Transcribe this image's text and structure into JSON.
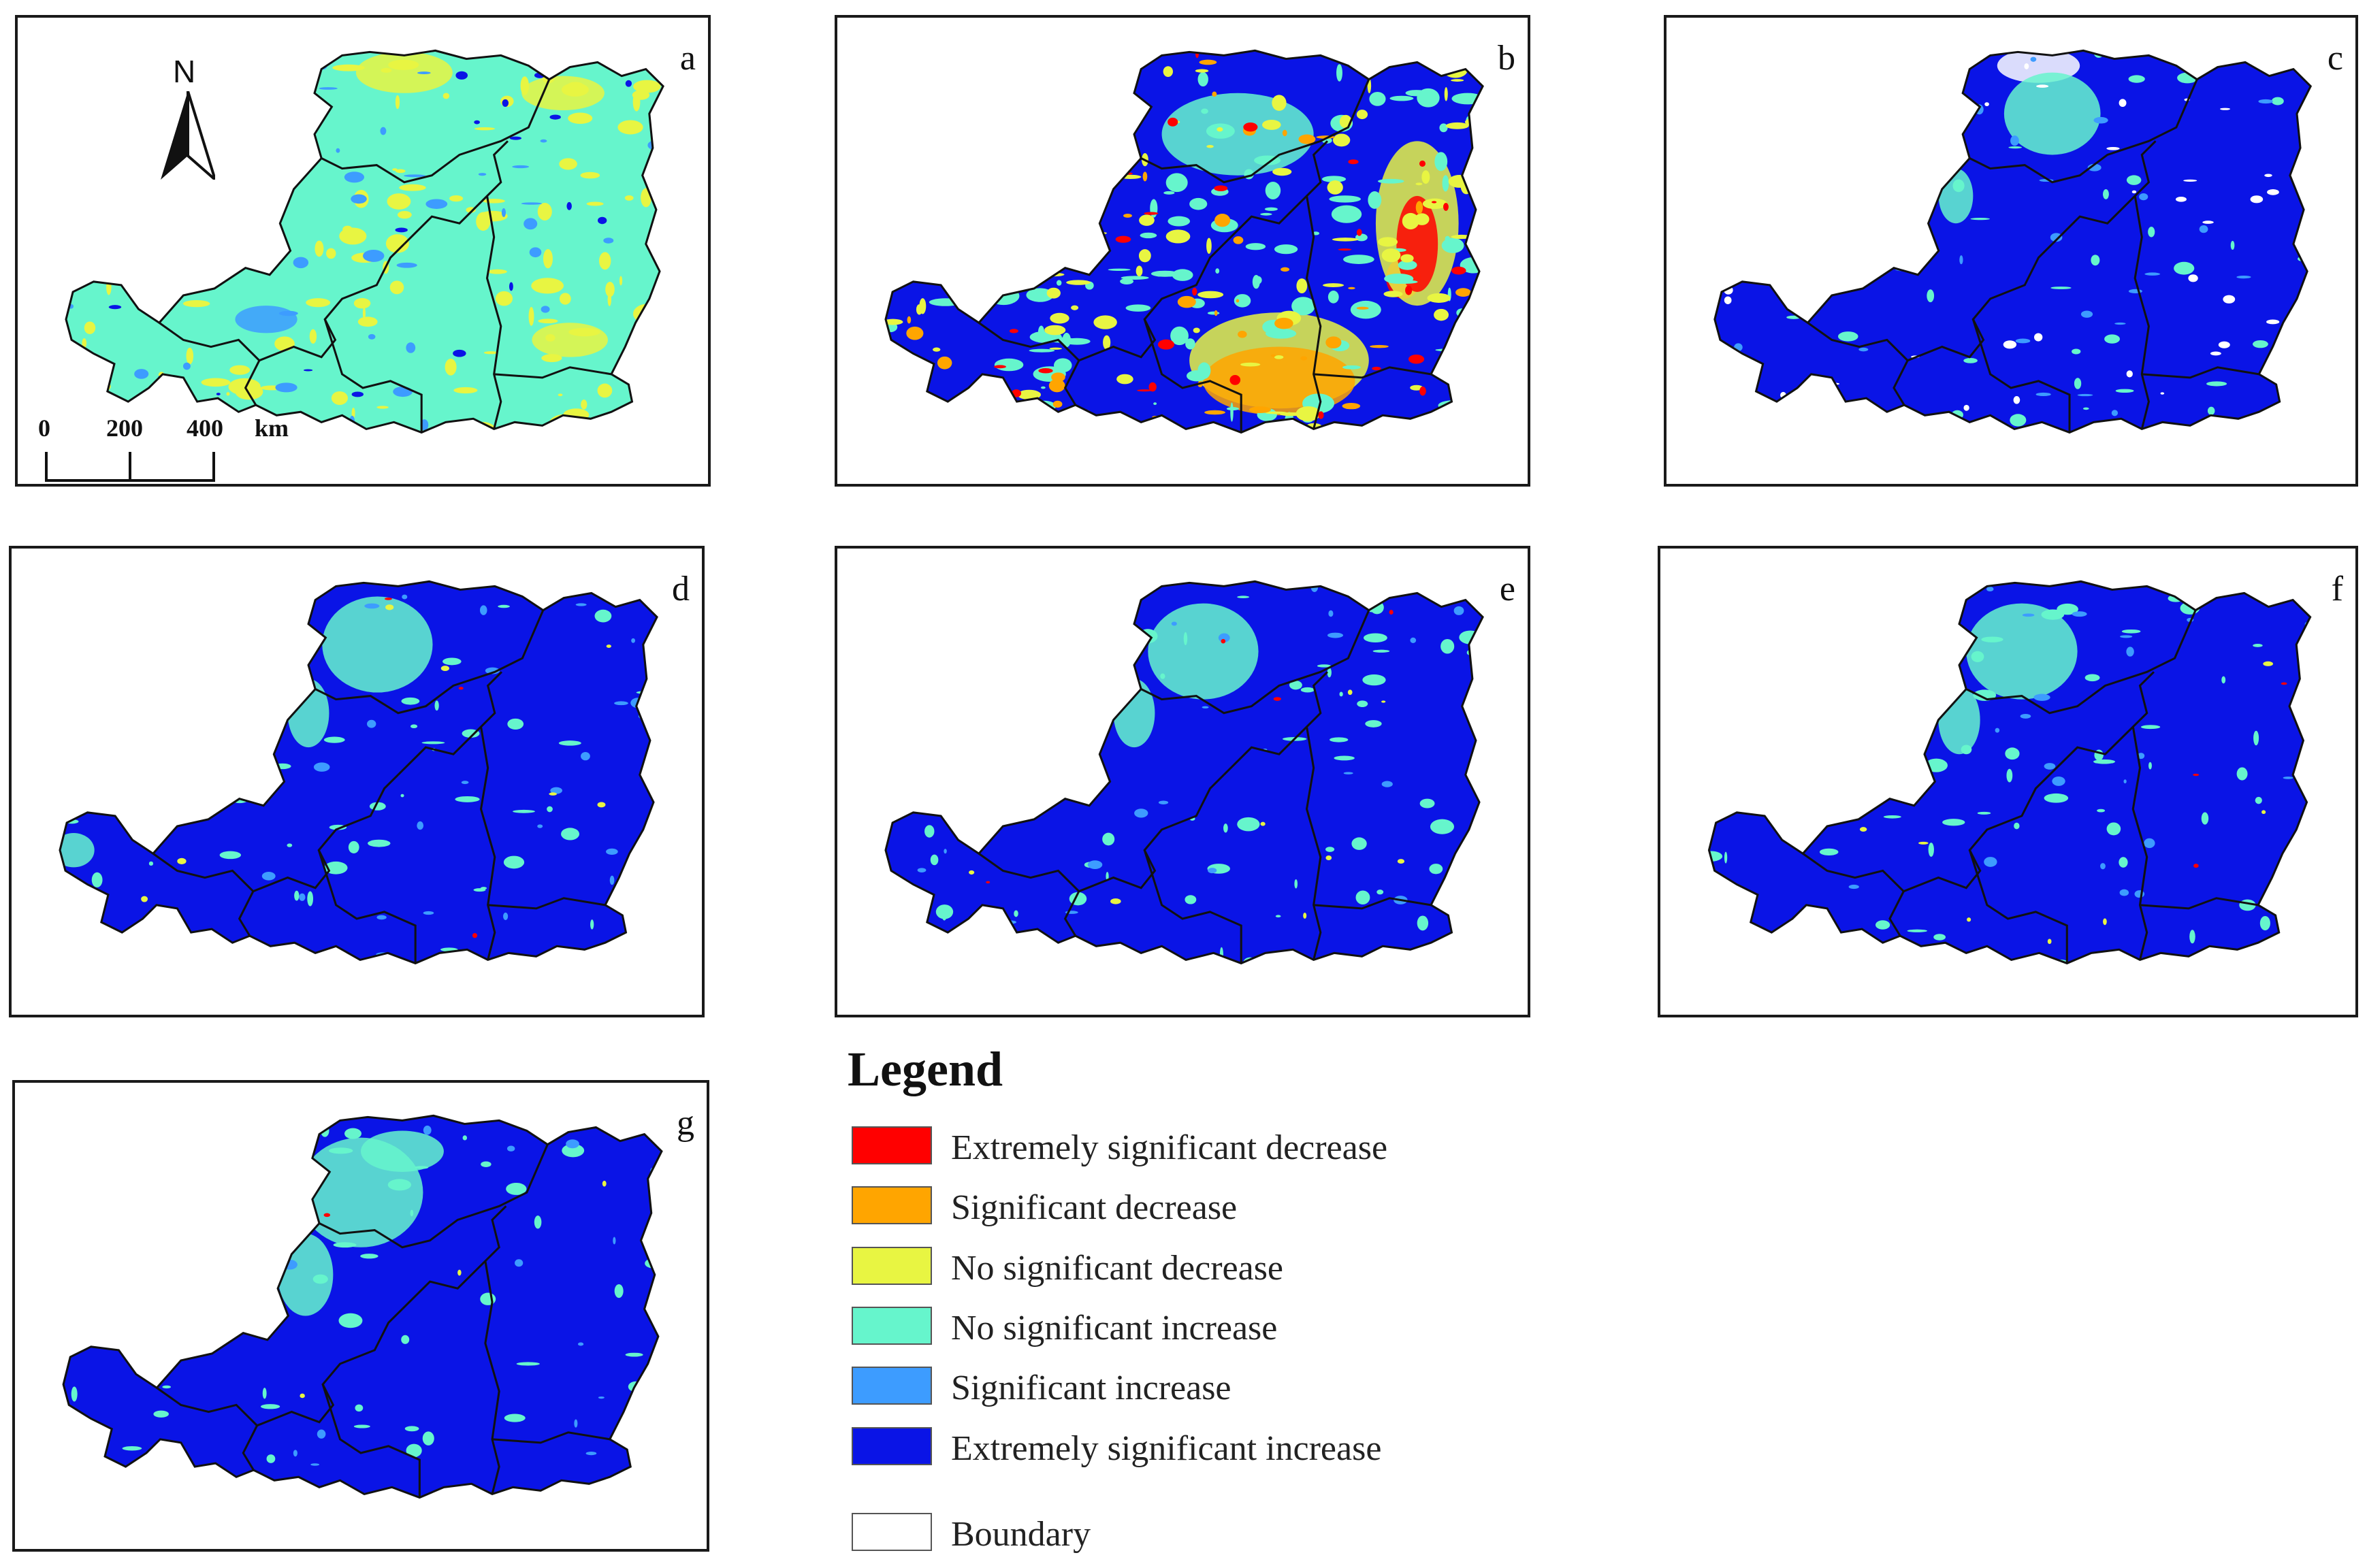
{
  "panels": [
    {
      "id": "a",
      "label": "a",
      "scheme": "a"
    },
    {
      "id": "b",
      "label": "b",
      "scheme": "b"
    },
    {
      "id": "c",
      "label": "c",
      "scheme": "c"
    },
    {
      "id": "d",
      "label": "d",
      "scheme": "d"
    },
    {
      "id": "e",
      "label": "e",
      "scheme": "e"
    },
    {
      "id": "f",
      "label": "f",
      "scheme": "f"
    },
    {
      "id": "g",
      "label": "g",
      "scheme": "g"
    }
  ],
  "map": {
    "north_label": "N",
    "scale_labels": [
      "0",
      "200",
      "400",
      "km"
    ]
  },
  "legend": {
    "title": "Legend",
    "items": [
      {
        "label": "Extremely significant decrease",
        "color": "#ff0000"
      },
      {
        "label": "Significant decrease",
        "color": "#ffa500"
      },
      {
        "label": "No significant decrease",
        "color": "#e8f542"
      },
      {
        "label": "No significant increase",
        "color": "#66f5cc"
      },
      {
        "label": "Significant increase",
        "color": "#3d9cff"
      },
      {
        "label": "Extremely significant increase",
        "color": "#0a14e6"
      },
      {
        "label": "Boundary",
        "color": "#ffffff"
      }
    ]
  },
  "colors": {
    "extreme_decrease": "#ff0000",
    "significant_decrease": "#ffa500",
    "no_sig_decrease": "#e8f542",
    "no_sig_increase": "#66f5cc",
    "significant_increase": "#3d9cff",
    "extreme_increase": "#0a14e6",
    "boundary_line": "#111111"
  }
}
